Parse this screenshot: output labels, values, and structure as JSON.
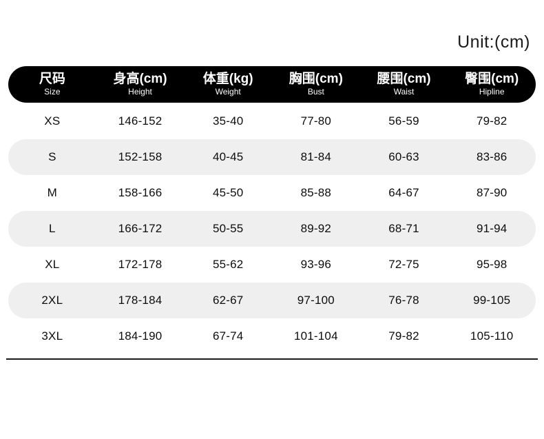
{
  "unit_label": "Unit:(cm)",
  "colors": {
    "header_bg": "#000000",
    "header_text": "#ffffff",
    "row_alt_bg": "#efefef",
    "text": "#111111"
  },
  "table": {
    "columns": [
      {
        "zh": "尺码",
        "en": "Size"
      },
      {
        "zh": "身高(cm)",
        "en": "Height"
      },
      {
        "zh": "体重(kg)",
        "en": "Weight"
      },
      {
        "zh": "胸围(cm)",
        "en": "Bust"
      },
      {
        "zh": "腰围(cm)",
        "en": "Waist"
      },
      {
        "zh": "臀围(cm)",
        "en": "Hipline"
      }
    ],
    "rows": [
      [
        "XS",
        "146-152",
        "35-40",
        "77-80",
        "56-59",
        "79-82"
      ],
      [
        "S",
        "152-158",
        "40-45",
        "81-84",
        "60-63",
        "83-86"
      ],
      [
        "M",
        "158-166",
        "45-50",
        "85-88",
        "64-67",
        "87-90"
      ],
      [
        "L",
        "166-172",
        "50-55",
        "89-92",
        "68-71",
        "91-94"
      ],
      [
        "XL",
        "172-178",
        "55-62",
        "93-96",
        "72-75",
        "95-98"
      ],
      [
        "2XL",
        "178-184",
        "62-67",
        "97-100",
        "76-78",
        "99-105"
      ],
      [
        "3XL",
        "184-190",
        "67-74",
        "101-104",
        "79-82",
        "105-110"
      ]
    ]
  },
  "chart_data": {
    "type": "table",
    "title": "Unit:(cm)",
    "columns": [
      "尺码 Size",
      "身高(cm) Height",
      "体重(kg) Weight",
      "胸围(cm) Bust",
      "腰围(cm) Waist",
      "臀围(cm) Hipline"
    ],
    "rows": [
      [
        "XS",
        "146-152",
        "35-40",
        "77-80",
        "56-59",
        "79-82"
      ],
      [
        "S",
        "152-158",
        "40-45",
        "81-84",
        "60-63",
        "83-86"
      ],
      [
        "M",
        "158-166",
        "45-50",
        "85-88",
        "64-67",
        "87-90"
      ],
      [
        "L",
        "166-172",
        "50-55",
        "89-92",
        "68-71",
        "91-94"
      ],
      [
        "XL",
        "172-178",
        "55-62",
        "93-96",
        "72-75",
        "95-98"
      ],
      [
        "2XL",
        "178-184",
        "62-67",
        "97-100",
        "76-78",
        "99-105"
      ],
      [
        "3XL",
        "184-190",
        "67-74",
        "101-104",
        "79-82",
        "105-110"
      ]
    ]
  }
}
